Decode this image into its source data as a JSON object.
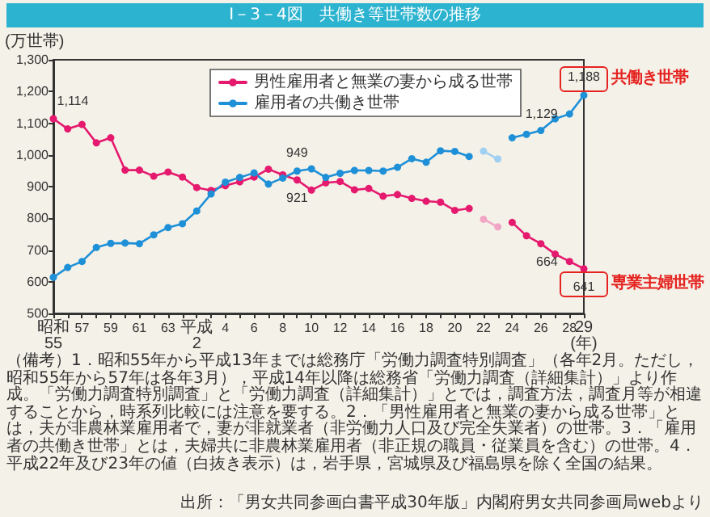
{
  "chart_data": {
    "type": "line",
    "title": "I－3－4図　共働き等世帯数の推移",
    "ylabel": "(万世帯)",
    "categories": [
      "昭和55",
      null,
      "57",
      null,
      "59",
      null,
      "61",
      null,
      "63",
      null,
      "平成2",
      null,
      "4",
      null,
      "6",
      null,
      "8",
      null,
      "10",
      null,
      "12",
      null,
      "14",
      null,
      "16",
      null,
      "18",
      null,
      "20",
      null,
      "22",
      null,
      "24",
      null,
      "26",
      null,
      "28",
      "29(年)"
    ],
    "series": [
      {
        "name": "男性雇用者と無業の妻から成る世帯",
        "color": "#e5196e",
        "values": [
          1114,
          1082,
          1096,
          1038,
          1054,
          952,
          952,
          933,
          946,
          930,
          897,
          888,
          903,
          915,
          930,
          955,
          937,
          921,
          889,
          912,
          916,
          890,
          894,
          870,
          875,
          863,
          854,
          851,
          825,
          831,
          null,
          null,
          787,
          745,
          720,
          687,
          664,
          641
        ],
        "value_labels": [
          "1,114",
          null,
          null,
          null,
          null,
          null,
          null,
          null,
          null,
          null,
          null,
          null,
          null,
          null,
          null,
          null,
          null,
          "921",
          null,
          null,
          null,
          null,
          null,
          null,
          null,
          null,
          null,
          null,
          null,
          null,
          null,
          null,
          null,
          null,
          null,
          null,
          "664",
          "641"
        ]
      },
      {
        "name": "雇用者の共働き世帯",
        "color": "#1e90d8",
        "values": [
          614,
          645,
          664,
          708,
          721,
          722,
          720,
          748,
          771,
          783,
          823,
          877,
          914,
          929,
          943,
          908,
          927,
          949,
          956,
          929,
          942,
          951,
          951,
          949,
          961,
          988,
          977,
          1013,
          1011,
          995,
          null,
          null,
          1054,
          1065,
          1077,
          1114,
          1129,
          1188
        ],
        "value_labels": [
          null,
          null,
          null,
          null,
          null,
          null,
          null,
          null,
          null,
          null,
          null,
          null,
          null,
          null,
          null,
          null,
          null,
          "949",
          null,
          null,
          null,
          null,
          null,
          null,
          null,
          null,
          null,
          null,
          null,
          null,
          null,
          null,
          null,
          null,
          null,
          null,
          "1,129",
          "1,188"
        ]
      },
      {
        "color": "#f2a6c6",
        "values": [
          null,
          null,
          null,
          null,
          null,
          null,
          null,
          null,
          null,
          null,
          null,
          null,
          null,
          null,
          null,
          null,
          null,
          null,
          null,
          null,
          null,
          null,
          null,
          null,
          null,
          null,
          null,
          null,
          null,
          null,
          797,
          773,
          null,
          null,
          null,
          null,
          null,
          null
        ]
      },
      {
        "color": "#9fd0f2",
        "values": [
          null,
          null,
          null,
          null,
          null,
          null,
          null,
          null,
          null,
          null,
          null,
          null,
          null,
          null,
          null,
          null,
          null,
          null,
          null,
          null,
          null,
          null,
          null,
          null,
          null,
          null,
          null,
          null,
          null,
          null,
          1012,
          987,
          null,
          null,
          null,
          null,
          null,
          null
        ]
      }
    ],
    "ylim": [
      500,
      1300
    ],
    "yticks": [
      500,
      600,
      700,
      800,
      900,
      {
        "value": 1000,
        "label": "1,000"
      },
      {
        "value": 1100,
        "label": "1,100"
      },
      {
        "value": 1200,
        "label": "1,200"
      },
      {
        "value": 1300,
        "label": "1,300"
      }
    ],
    "grid": false,
    "legend": "top",
    "marker": "circle",
    "line_style": "solid",
    "annotations": [
      {
        "text": "共働き世帯",
        "x": "29(年)",
        "y": 1188
      },
      {
        "text": "専業主婦世帯",
        "x": "29(年)",
        "y": 641
      },
      "（備考）1．昭和55年から平成13年までは総務庁「労働力調査特別調査」（各年2月。ただし，昭和55年から57年は各年3月），平成14年以降は総務省「労働力調査（詳細集計）」より作成。「労働力調査特別調査」と「労働力調査（詳細集計）」とでは，調査方法，調査月等が相違することから，時系列比較には注意を要する。",
      "2．「男性雇用者と無業の妻から成る世帯」とは，夫が非農林業雇用者で，妻が非就業者（非労働力人口及び完全失業者）の世帯。",
      "3．「雇用者の共働き世帯」とは，夫婦共に非農林業雇用者（非正規の職員・従業員を含む）の世帯。",
      "4．平成22年及び23年の値（白抜き表示）は，岩手県，宮城県及び福島県を除く全国の結果。",
      "出所：「男女共同参画白書平成30年版」内閣府男女共同参画局webより"
    ]
  }
}
